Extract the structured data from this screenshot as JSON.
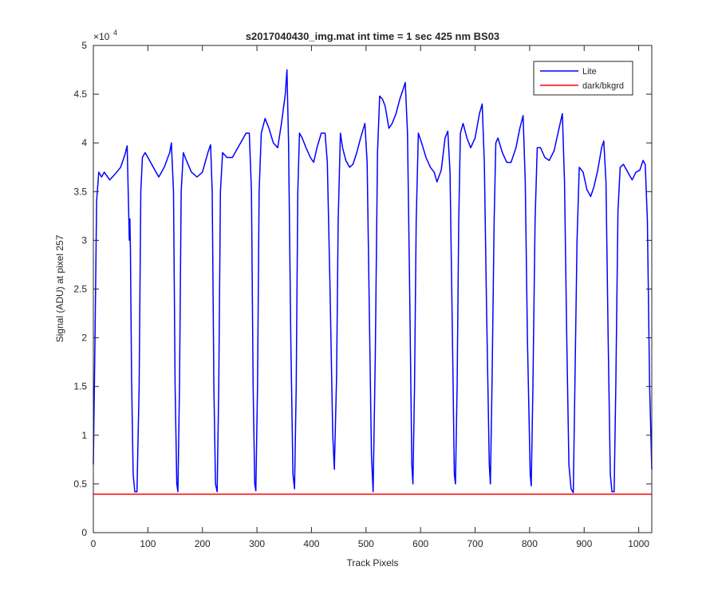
{
  "chart_data": {
    "type": "line",
    "title": "s2017040430_img.mat int time = 1 sec  425 nm BS03",
    "xlabel": "Track Pixels",
    "ylabel": "Signal (ADU) at pixel 257",
    "y_exponent_label": "×10",
    "y_exponent_power": "4",
    "xlim": [
      0,
      1024
    ],
    "ylim": [
      0,
      5
    ],
    "y_scale_factor": 10000,
    "xticks": [
      0,
      100,
      200,
      300,
      400,
      500,
      600,
      700,
      800,
      900,
      1000
    ],
    "yticks": [
      0,
      0.5,
      1,
      1.5,
      2,
      2.5,
      3,
      3.5,
      4,
      4.5,
      5
    ],
    "xtick_labels": [
      "0",
      "100",
      "200",
      "300",
      "400",
      "500",
      "600",
      "700",
      "800",
      "900",
      "1000"
    ],
    "ytick_labels": [
      "0",
      "0.5",
      "1",
      "1.5",
      "2",
      "2.5",
      "3",
      "3.5",
      "4",
      "4.5",
      "5"
    ],
    "grid": false,
    "legend_position": "top-right",
    "series": [
      {
        "name": "Lite",
        "color": "#0000ff",
        "points": [
          [
            0,
            0.7
          ],
          [
            3,
            2.0
          ],
          [
            6,
            3.4
          ],
          [
            10,
            3.7
          ],
          [
            15,
            3.65
          ],
          [
            20,
            3.7
          ],
          [
            30,
            3.62
          ],
          [
            40,
            3.68
          ],
          [
            50,
            3.75
          ],
          [
            58,
            3.88
          ],
          [
            62,
            3.97
          ],
          [
            66,
            3.0
          ],
          [
            67,
            3.22
          ],
          [
            68,
            2.9
          ],
          [
            70,
            1.6
          ],
          [
            73,
            0.6
          ],
          [
            76,
            0.42
          ],
          [
            80,
            0.42
          ],
          [
            84,
            1.5
          ],
          [
            87,
            3.5
          ],
          [
            90,
            3.85
          ],
          [
            95,
            3.9
          ],
          [
            100,
            3.85
          ],
          [
            110,
            3.75
          ],
          [
            120,
            3.65
          ],
          [
            130,
            3.75
          ],
          [
            140,
            3.9
          ],
          [
            143,
            4.0
          ],
          [
            147,
            3.5
          ],
          [
            150,
            1.5
          ],
          [
            153,
            0.5
          ],
          [
            155,
            0.42
          ],
          [
            158,
            1.5
          ],
          [
            161,
            3.5
          ],
          [
            165,
            3.9
          ],
          [
            172,
            3.8
          ],
          [
            180,
            3.7
          ],
          [
            190,
            3.65
          ],
          [
            200,
            3.7
          ],
          [
            210,
            3.9
          ],
          [
            215,
            3.98
          ],
          [
            218,
            3.5
          ],
          [
            221,
            1.5
          ],
          [
            224,
            0.5
          ],
          [
            227,
            0.42
          ],
          [
            230,
            1.5
          ],
          [
            233,
            3.5
          ],
          [
            237,
            3.9
          ],
          [
            245,
            3.85
          ],
          [
            255,
            3.85
          ],
          [
            265,
            3.95
          ],
          [
            280,
            4.1
          ],
          [
            286,
            4.1
          ],
          [
            290,
            3.5
          ],
          [
            293,
            1.5
          ],
          [
            296,
            0.5
          ],
          [
            298,
            0.43
          ],
          [
            301,
            1.5
          ],
          [
            304,
            3.5
          ],
          [
            308,
            4.1
          ],
          [
            315,
            4.25
          ],
          [
            322,
            4.15
          ],
          [
            330,
            4.0
          ],
          [
            338,
            3.95
          ],
          [
            345,
            4.2
          ],
          [
            352,
            4.5
          ],
          [
            355,
            4.75
          ],
          [
            358,
            4.0
          ],
          [
            362,
            2.0
          ],
          [
            366,
            0.6
          ],
          [
            369,
            0.45
          ],
          [
            372,
            1.5
          ],
          [
            375,
            3.5
          ],
          [
            378,
            4.1
          ],
          [
            383,
            4.05
          ],
          [
            390,
            3.95
          ],
          [
            398,
            3.85
          ],
          [
            404,
            3.8
          ],
          [
            410,
            3.95
          ],
          [
            418,
            4.1
          ],
          [
            425,
            4.1
          ],
          [
            429,
            3.8
          ],
          [
            434,
            2.5
          ],
          [
            439,
            1.0
          ],
          [
            442,
            0.65
          ],
          [
            446,
            1.6
          ],
          [
            449,
            3.2
          ],
          [
            453,
            4.1
          ],
          [
            457,
            3.95
          ],
          [
            463,
            3.82
          ],
          [
            470,
            3.75
          ],
          [
            476,
            3.78
          ],
          [
            483,
            3.9
          ],
          [
            490,
            4.05
          ],
          [
            498,
            4.2
          ],
          [
            502,
            3.8
          ],
          [
            506,
            2.3
          ],
          [
            510,
            0.8
          ],
          [
            513,
            0.42
          ],
          [
            517,
            1.8
          ],
          [
            521,
            3.9
          ],
          [
            525,
            4.48
          ],
          [
            530,
            4.45
          ],
          [
            535,
            4.38
          ],
          [
            542,
            4.15
          ],
          [
            548,
            4.2
          ],
          [
            555,
            4.3
          ],
          [
            562,
            4.45
          ],
          [
            568,
            4.55
          ],
          [
            572,
            4.62
          ],
          [
            576,
            4.1
          ],
          [
            580,
            2.5
          ],
          [
            584,
            0.7
          ],
          [
            586,
            0.5
          ],
          [
            589,
            1.5
          ],
          [
            592,
            3.2
          ],
          [
            596,
            4.1
          ],
          [
            602,
            4.0
          ],
          [
            610,
            3.85
          ],
          [
            618,
            3.75
          ],
          [
            625,
            3.7
          ],
          [
            630,
            3.6
          ],
          [
            638,
            3.72
          ],
          [
            645,
            4.05
          ],
          [
            650,
            4.12
          ],
          [
            654,
            3.7
          ],
          [
            658,
            2.2
          ],
          [
            662,
            0.6
          ],
          [
            664,
            0.5
          ],
          [
            667,
            1.5
          ],
          [
            670,
            3.2
          ],
          [
            673,
            4.1
          ],
          [
            678,
            4.2
          ],
          [
            685,
            4.05
          ],
          [
            692,
            3.95
          ],
          [
            700,
            4.05
          ],
          [
            708,
            4.3
          ],
          [
            713,
            4.4
          ],
          [
            717,
            3.8
          ],
          [
            721,
            2.3
          ],
          [
            726,
            0.7
          ],
          [
            728,
            0.5
          ],
          [
            731,
            1.5
          ],
          [
            735,
            3.2
          ],
          [
            738,
            4.0
          ],
          [
            742,
            4.05
          ],
          [
            750,
            3.9
          ],
          [
            758,
            3.8
          ],
          [
            766,
            3.8
          ],
          [
            775,
            3.95
          ],
          [
            782,
            4.15
          ],
          [
            788,
            4.28
          ],
          [
            792,
            3.6
          ],
          [
            796,
            2.0
          ],
          [
            801,
            0.6
          ],
          [
            803,
            0.48
          ],
          [
            806,
            1.5
          ],
          [
            810,
            3.2
          ],
          [
            814,
            3.95
          ],
          [
            820,
            3.95
          ],
          [
            828,
            3.85
          ],
          [
            836,
            3.82
          ],
          [
            845,
            3.92
          ],
          [
            852,
            4.1
          ],
          [
            860,
            4.3
          ],
          [
            864,
            3.6
          ],
          [
            868,
            2.0
          ],
          [
            872,
            0.7
          ],
          [
            876,
            0.45
          ],
          [
            880,
            0.41
          ],
          [
            883,
            1.5
          ],
          [
            887,
            3.0
          ],
          [
            891,
            3.75
          ],
          [
            898,
            3.7
          ],
          [
            905,
            3.52
          ],
          [
            912,
            3.45
          ],
          [
            918,
            3.55
          ],
          [
            925,
            3.72
          ],
          [
            932,
            3.95
          ],
          [
            936,
            4.02
          ],
          [
            940,
            3.6
          ],
          [
            944,
            2.0
          ],
          [
            948,
            0.6
          ],
          [
            951,
            0.42
          ],
          [
            955,
            0.42
          ],
          [
            958,
            1.5
          ],
          [
            962,
            3.3
          ],
          [
            966,
            3.75
          ],
          [
            972,
            3.78
          ],
          [
            980,
            3.7
          ],
          [
            988,
            3.62
          ],
          [
            995,
            3.7
          ],
          [
            1002,
            3.72
          ],
          [
            1008,
            3.82
          ],
          [
            1012,
            3.78
          ],
          [
            1016,
            3.2
          ],
          [
            1020,
            1.5
          ],
          [
            1024,
            0.65
          ]
        ]
      },
      {
        "name": "dark/bkgrd",
        "color": "#ff0000",
        "points": [
          [
            0,
            0.395
          ],
          [
            1024,
            0.395
          ]
        ]
      }
    ]
  }
}
